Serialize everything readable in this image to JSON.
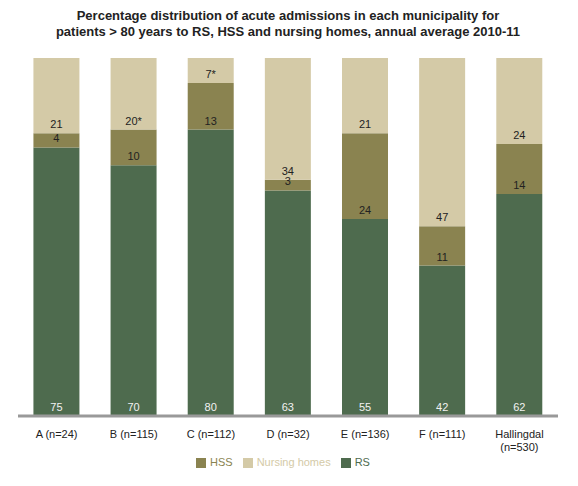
{
  "chart_data": {
    "type": "bar",
    "title": "Percentage distribution of acute admissions in each municipality for patients > 80 years to RS, HSS and nursing homes, annual average 2010-11",
    "categories": [
      "A (n=24)",
      "B (n=115)",
      "C (n=112)",
      "D (n=32)",
      "E (n=136)",
      "F (n=111)",
      "Hallingdal (n=530)"
    ],
    "series": [
      {
        "name": "RS",
        "color": "#4e6b4e",
        "values": [
          75,
          70,
          80,
          63,
          55,
          42,
          62
        ]
      },
      {
        "name": "HSS",
        "color": "#8a8350",
        "values": [
          4,
          10,
          13,
          3,
          24,
          11,
          14
        ]
      },
      {
        "name": "Nursing homes",
        "color": "#d4caa7",
        "values": [
          21,
          20,
          7,
          34,
          21,
          47,
          24
        ],
        "value_labels": [
          "21",
          "20*",
          "7*",
          "34",
          "21",
          "47",
          "24"
        ]
      }
    ],
    "ylim": [
      0,
      100
    ],
    "stacked": true,
    "data_labels": true,
    "tick_labels": "x",
    "legend": "bottom",
    "grid": false
  }
}
